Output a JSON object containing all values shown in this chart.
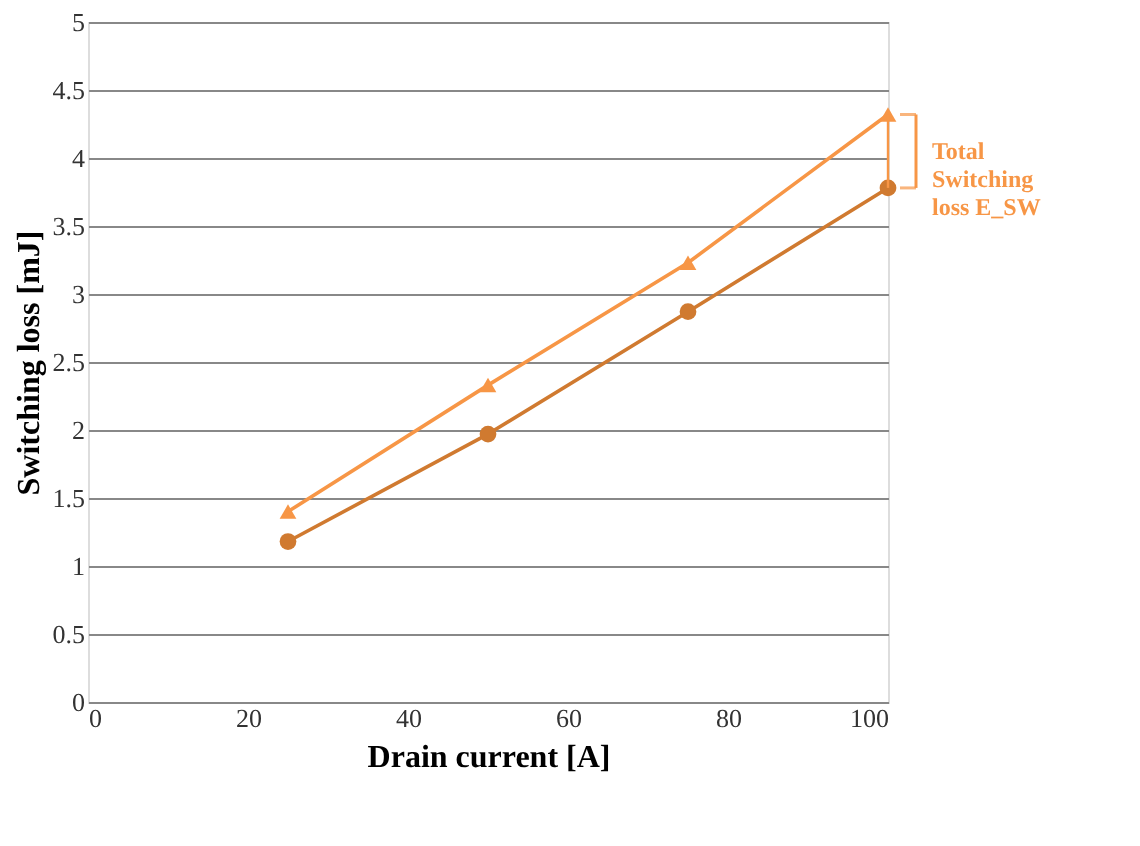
{
  "chart_data": {
    "type": "line",
    "xlabel": "Drain current  [A]",
    "ylabel": "Switching loss [mJ]",
    "x": [
      25,
      50,
      75,
      100
    ],
    "series": [
      {
        "color": "#f79646",
        "marker": "triangle",
        "values": [
          1.4,
          2.33,
          3.23,
          4.32
        ]
      },
      {
        "color": "#d07a30",
        "marker": "circle",
        "values": [
          1.18,
          1.97,
          2.87,
          3.78
        ]
      }
    ],
    "xlim": [
      0,
      100
    ],
    "xticks": [
      0,
      20,
      40,
      60,
      80,
      100
    ],
    "ylim": [
      0,
      5
    ],
    "yticks": [
      0,
      0.5,
      1,
      1.5,
      2,
      2.5,
      3,
      3.5,
      4,
      4.5,
      5
    ],
    "grid": "y",
    "line_style": "solid",
    "annotations": [
      "Total\nSwitching\nloss E_SW"
    ]
  }
}
